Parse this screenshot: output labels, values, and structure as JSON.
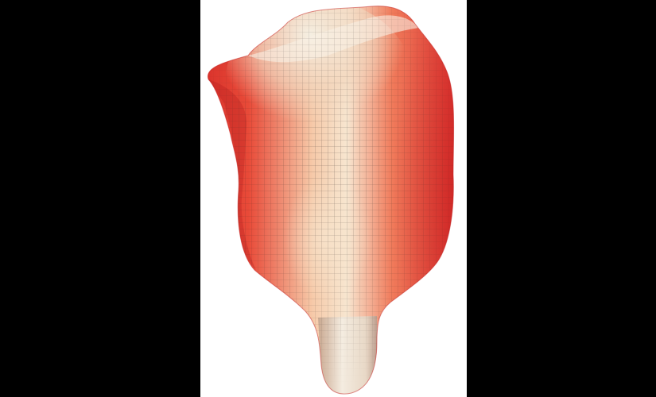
{
  "scene": {
    "background_color": "#000000",
    "panel_color": "#ffffff",
    "shape_colors": {
      "high": "#e8322a",
      "mid": "#f4a07f",
      "low": "#f3ead8",
      "grid": "#2a2522"
    },
    "icon": "3d-surface-shape"
  }
}
